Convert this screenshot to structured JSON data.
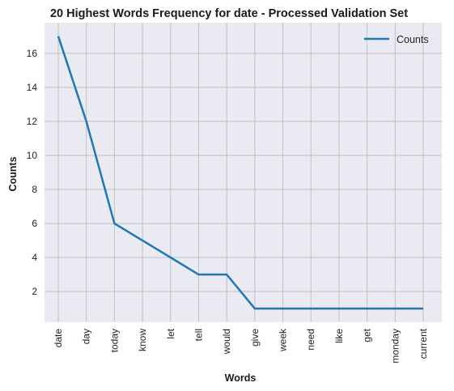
{
  "chart_data": {
    "type": "line",
    "title": "20 Highest Words Frequency for date - Processed Validation Set",
    "xlabel": "Words",
    "ylabel": "Counts",
    "categories": [
      "date",
      "day",
      "today",
      "know",
      "let",
      "tell",
      "would",
      "give",
      "week",
      "need",
      "like",
      "get",
      "monday",
      "current"
    ],
    "series": [
      {
        "name": "Counts",
        "values": [
          17,
          12,
          6,
          5,
          4,
          3,
          3,
          1,
          1,
          1,
          1,
          1,
          1,
          1
        ]
      }
    ],
    "ylim": [
      0.2,
      17.8
    ],
    "yticks": [
      2,
      4,
      6,
      8,
      10,
      12,
      14,
      16
    ],
    "grid": true,
    "legend_position": "top-right",
    "colors": {
      "line": "#1f77b4",
      "plot_background": "#eaeaf2",
      "grid": "#c0c0c0"
    }
  }
}
